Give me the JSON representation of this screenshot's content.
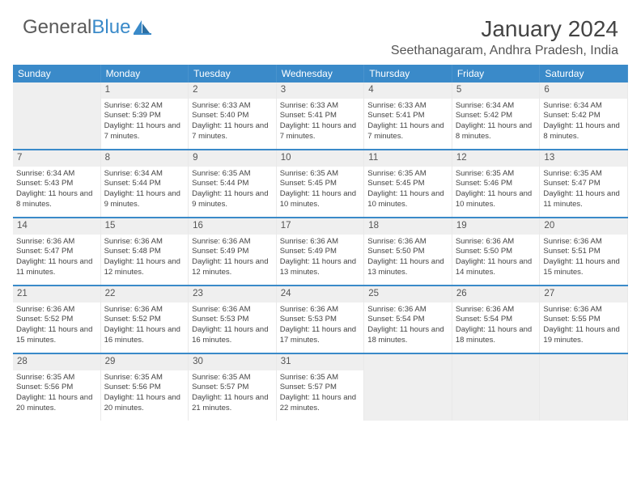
{
  "brand": {
    "part1": "General",
    "part2": "Blue"
  },
  "title": "January 2024",
  "location": "Seethanagaram, Andhra Pradesh, India",
  "colors": {
    "header_bar": "#3a8ac9",
    "daynum_bg": "#efefef",
    "text": "#444444",
    "logo_gray": "#5a5a5a"
  },
  "weekdays": [
    "Sunday",
    "Monday",
    "Tuesday",
    "Wednesday",
    "Thursday",
    "Friday",
    "Saturday"
  ],
  "days": [
    null,
    {
      "n": "1",
      "sr": "Sunrise: 6:32 AM",
      "ss": "Sunset: 5:39 PM",
      "dl": "Daylight: 11 hours and 7 minutes."
    },
    {
      "n": "2",
      "sr": "Sunrise: 6:33 AM",
      "ss": "Sunset: 5:40 PM",
      "dl": "Daylight: 11 hours and 7 minutes."
    },
    {
      "n": "3",
      "sr": "Sunrise: 6:33 AM",
      "ss": "Sunset: 5:41 PM",
      "dl": "Daylight: 11 hours and 7 minutes."
    },
    {
      "n": "4",
      "sr": "Sunrise: 6:33 AM",
      "ss": "Sunset: 5:41 PM",
      "dl": "Daylight: 11 hours and 7 minutes."
    },
    {
      "n": "5",
      "sr": "Sunrise: 6:34 AM",
      "ss": "Sunset: 5:42 PM",
      "dl": "Daylight: 11 hours and 8 minutes."
    },
    {
      "n": "6",
      "sr": "Sunrise: 6:34 AM",
      "ss": "Sunset: 5:42 PM",
      "dl": "Daylight: 11 hours and 8 minutes."
    },
    {
      "n": "7",
      "sr": "Sunrise: 6:34 AM",
      "ss": "Sunset: 5:43 PM",
      "dl": "Daylight: 11 hours and 8 minutes."
    },
    {
      "n": "8",
      "sr": "Sunrise: 6:34 AM",
      "ss": "Sunset: 5:44 PM",
      "dl": "Daylight: 11 hours and 9 minutes."
    },
    {
      "n": "9",
      "sr": "Sunrise: 6:35 AM",
      "ss": "Sunset: 5:44 PM",
      "dl": "Daylight: 11 hours and 9 minutes."
    },
    {
      "n": "10",
      "sr": "Sunrise: 6:35 AM",
      "ss": "Sunset: 5:45 PM",
      "dl": "Daylight: 11 hours and 10 minutes."
    },
    {
      "n": "11",
      "sr": "Sunrise: 6:35 AM",
      "ss": "Sunset: 5:45 PM",
      "dl": "Daylight: 11 hours and 10 minutes."
    },
    {
      "n": "12",
      "sr": "Sunrise: 6:35 AM",
      "ss": "Sunset: 5:46 PM",
      "dl": "Daylight: 11 hours and 10 minutes."
    },
    {
      "n": "13",
      "sr": "Sunrise: 6:35 AM",
      "ss": "Sunset: 5:47 PM",
      "dl": "Daylight: 11 hours and 11 minutes."
    },
    {
      "n": "14",
      "sr": "Sunrise: 6:36 AM",
      "ss": "Sunset: 5:47 PM",
      "dl": "Daylight: 11 hours and 11 minutes."
    },
    {
      "n": "15",
      "sr": "Sunrise: 6:36 AM",
      "ss": "Sunset: 5:48 PM",
      "dl": "Daylight: 11 hours and 12 minutes."
    },
    {
      "n": "16",
      "sr": "Sunrise: 6:36 AM",
      "ss": "Sunset: 5:49 PM",
      "dl": "Daylight: 11 hours and 12 minutes."
    },
    {
      "n": "17",
      "sr": "Sunrise: 6:36 AM",
      "ss": "Sunset: 5:49 PM",
      "dl": "Daylight: 11 hours and 13 minutes."
    },
    {
      "n": "18",
      "sr": "Sunrise: 6:36 AM",
      "ss": "Sunset: 5:50 PM",
      "dl": "Daylight: 11 hours and 13 minutes."
    },
    {
      "n": "19",
      "sr": "Sunrise: 6:36 AM",
      "ss": "Sunset: 5:50 PM",
      "dl": "Daylight: 11 hours and 14 minutes."
    },
    {
      "n": "20",
      "sr": "Sunrise: 6:36 AM",
      "ss": "Sunset: 5:51 PM",
      "dl": "Daylight: 11 hours and 15 minutes."
    },
    {
      "n": "21",
      "sr": "Sunrise: 6:36 AM",
      "ss": "Sunset: 5:52 PM",
      "dl": "Daylight: 11 hours and 15 minutes."
    },
    {
      "n": "22",
      "sr": "Sunrise: 6:36 AM",
      "ss": "Sunset: 5:52 PM",
      "dl": "Daylight: 11 hours and 16 minutes."
    },
    {
      "n": "23",
      "sr": "Sunrise: 6:36 AM",
      "ss": "Sunset: 5:53 PM",
      "dl": "Daylight: 11 hours and 16 minutes."
    },
    {
      "n": "24",
      "sr": "Sunrise: 6:36 AM",
      "ss": "Sunset: 5:53 PM",
      "dl": "Daylight: 11 hours and 17 minutes."
    },
    {
      "n": "25",
      "sr": "Sunrise: 6:36 AM",
      "ss": "Sunset: 5:54 PM",
      "dl": "Daylight: 11 hours and 18 minutes."
    },
    {
      "n": "26",
      "sr": "Sunrise: 6:36 AM",
      "ss": "Sunset: 5:54 PM",
      "dl": "Daylight: 11 hours and 18 minutes."
    },
    {
      "n": "27",
      "sr": "Sunrise: 6:36 AM",
      "ss": "Sunset: 5:55 PM",
      "dl": "Daylight: 11 hours and 19 minutes."
    },
    {
      "n": "28",
      "sr": "Sunrise: 6:35 AM",
      "ss": "Sunset: 5:56 PM",
      "dl": "Daylight: 11 hours and 20 minutes."
    },
    {
      "n": "29",
      "sr": "Sunrise: 6:35 AM",
      "ss": "Sunset: 5:56 PM",
      "dl": "Daylight: 11 hours and 20 minutes."
    },
    {
      "n": "30",
      "sr": "Sunrise: 6:35 AM",
      "ss": "Sunset: 5:57 PM",
      "dl": "Daylight: 11 hours and 21 minutes."
    },
    {
      "n": "31",
      "sr": "Sunrise: 6:35 AM",
      "ss": "Sunset: 5:57 PM",
      "dl": "Daylight: 11 hours and 22 minutes."
    },
    null,
    null,
    null
  ]
}
